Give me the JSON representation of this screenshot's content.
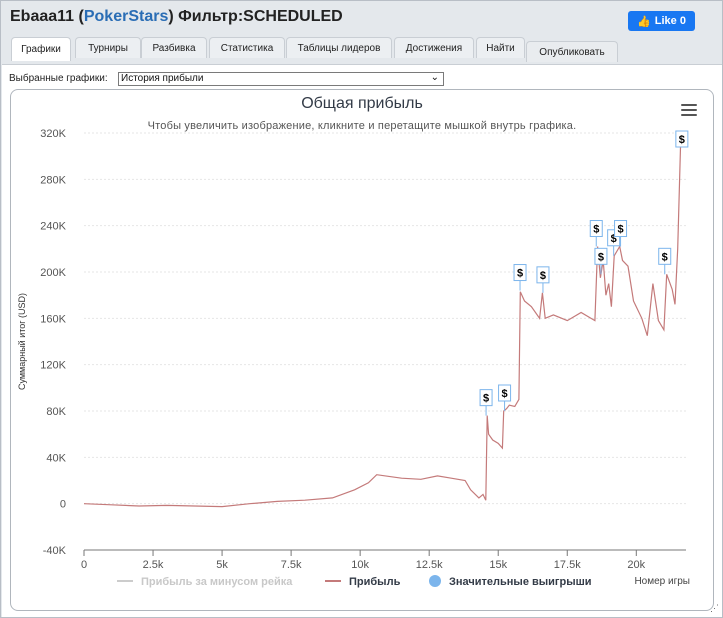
{
  "header": {
    "player": "Ebaaa11",
    "site": "PokerStars",
    "filter_label": "Фильтр:",
    "filter_value": "SCHEDULED",
    "like_label": "Like 0"
  },
  "tabs": [
    {
      "label": "Графики",
      "active": true
    },
    {
      "label": "Турниры"
    },
    {
      "label": "Разбивка"
    },
    {
      "label": "Статистика"
    },
    {
      "label": "Таблицы лидеров"
    },
    {
      "label": "Достижения"
    },
    {
      "label": "Найти"
    },
    {
      "label": "Опубликовать"
    }
  ],
  "selector": {
    "label": "Выбранные графики:",
    "value": "История прибыли"
  },
  "chart_data": {
    "type": "line",
    "title": "Общая прибыль",
    "subtitle": "Чтобы увеличить изображение, кликните и перетащите мышкой внутрь графика.",
    "xlabel": "Номер игры",
    "ylabel": "Суммарный итог (USD)",
    "x_ticks": [
      "0",
      "2.5k",
      "5k",
      "7.5k",
      "10k",
      "12.5k",
      "15k",
      "17.5k",
      "20k"
    ],
    "y_ticks": [
      "-40K",
      "0",
      "40K",
      "80K",
      "120K",
      "160K",
      "200K",
      "240K",
      "280K",
      "320K"
    ],
    "xlim": [
      0,
      21800
    ],
    "ylim": [
      -40000,
      320000
    ],
    "grid": true,
    "series": [
      {
        "name": "Прибыль",
        "color": "#c47a7a",
        "points": [
          [
            0,
            0
          ],
          [
            1000,
            -1000
          ],
          [
            2000,
            -2000
          ],
          [
            3000,
            -1500
          ],
          [
            4000,
            -2000
          ],
          [
            5000,
            -2500
          ],
          [
            6000,
            0
          ],
          [
            7000,
            2000
          ],
          [
            8000,
            3000
          ],
          [
            9000,
            5000
          ],
          [
            9800,
            12000
          ],
          [
            10300,
            18000
          ],
          [
            10600,
            25000
          ],
          [
            11500,
            22000
          ],
          [
            12200,
            21000
          ],
          [
            12800,
            24000
          ],
          [
            13300,
            22000
          ],
          [
            13800,
            20000
          ],
          [
            14000,
            12000
          ],
          [
            14300,
            5000
          ],
          [
            14450,
            8000
          ],
          [
            14550,
            3000
          ],
          [
            14600,
            76000
          ],
          [
            14650,
            60000
          ],
          [
            14800,
            55000
          ],
          [
            15000,
            52000
          ],
          [
            15150,
            48000
          ],
          [
            15200,
            80000
          ],
          [
            15300,
            82000
          ],
          [
            15400,
            85000
          ],
          [
            15600,
            84000
          ],
          [
            15750,
            90000
          ],
          [
            15800,
            183000
          ],
          [
            15950,
            175000
          ],
          [
            16200,
            170000
          ],
          [
            16500,
            160000
          ],
          [
            16600,
            182000
          ],
          [
            16700,
            160000
          ],
          [
            17000,
            163000
          ],
          [
            17500,
            158000
          ],
          [
            18000,
            165000
          ],
          [
            18500,
            158000
          ],
          [
            18600,
            222000
          ],
          [
            18700,
            195000
          ],
          [
            18800,
            210000
          ],
          [
            18900,
            180000
          ],
          [
            19000,
            190000
          ],
          [
            19100,
            170000
          ],
          [
            19200,
            214000
          ],
          [
            19400,
            222000
          ],
          [
            19500,
            210000
          ],
          [
            19700,
            205000
          ],
          [
            19900,
            175000
          ],
          [
            20200,
            160000
          ],
          [
            20400,
            145000
          ],
          [
            20600,
            190000
          ],
          [
            20800,
            158000
          ],
          [
            21000,
            150000
          ],
          [
            21100,
            198000
          ],
          [
            21300,
            185000
          ],
          [
            21400,
            172000
          ],
          [
            21500,
            220000
          ],
          [
            21600,
            308000
          ],
          [
            21700,
            312000
          ]
        ]
      }
    ],
    "flags": [
      {
        "x": 14560,
        "y": 76000
      },
      {
        "x": 15230,
        "y": 80000
      },
      {
        "x": 15790,
        "y": 184000
      },
      {
        "x": 16620,
        "y": 182000
      },
      {
        "x": 18550,
        "y": 222000
      },
      {
        "x": 18720,
        "y": 198000
      },
      {
        "x": 19180,
        "y": 214000
      },
      {
        "x": 19430,
        "y": 222000
      },
      {
        "x": 21030,
        "y": 198000
      },
      {
        "x": 21650,
        "y": 318000
      }
    ],
    "flag_label": "$",
    "legend": [
      {
        "label": "Прибыль за минусом рейка",
        "color": "#cccccc",
        "muted": true
      },
      {
        "label": "Прибыль",
        "color": "#c47a7a"
      },
      {
        "label": "Значительные выигрыши",
        "color": "#7cb5ec"
      }
    ]
  }
}
